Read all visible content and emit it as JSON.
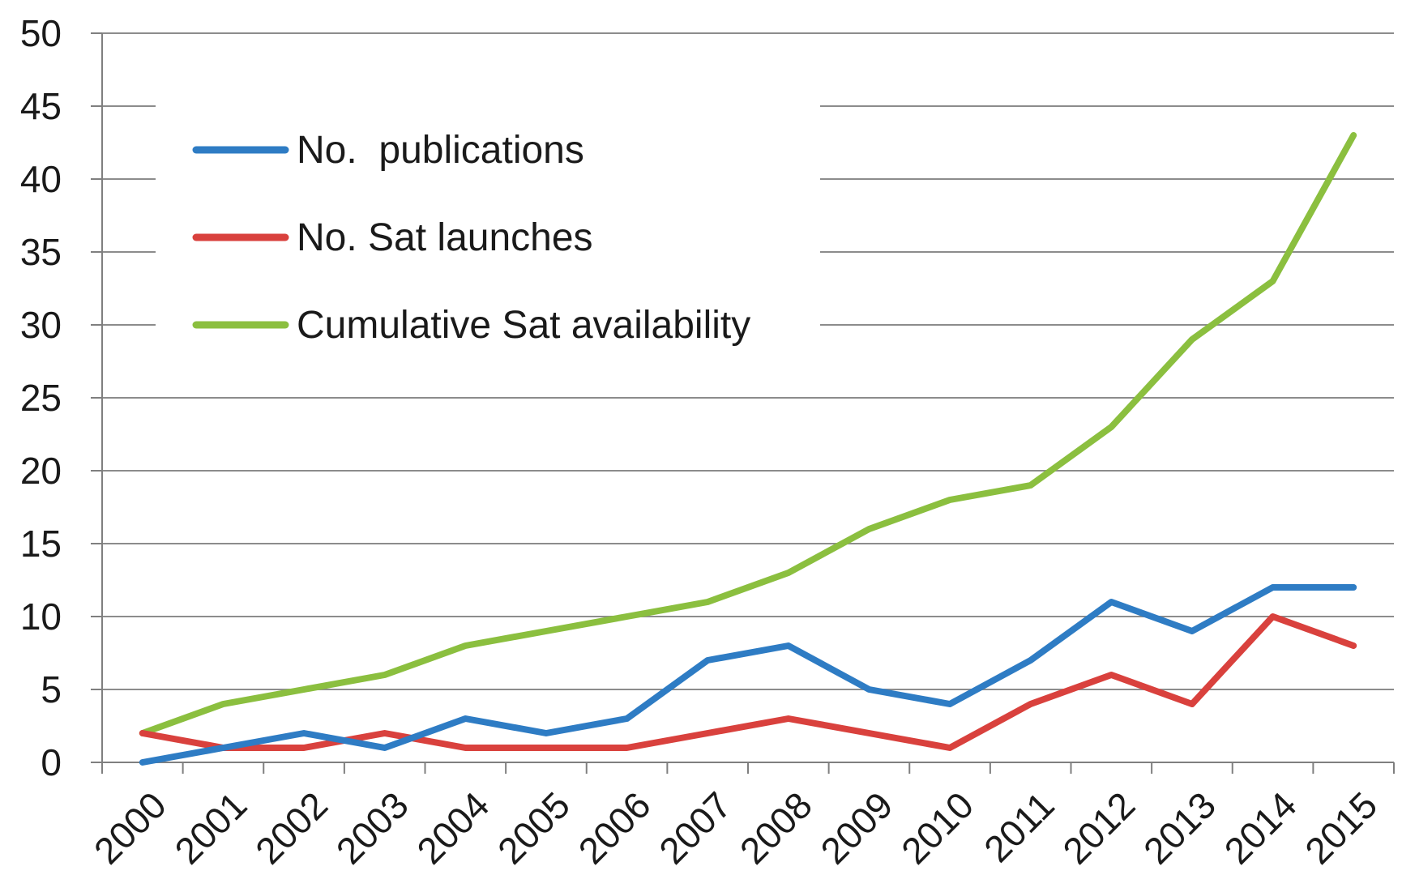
{
  "chart_data": {
    "type": "line",
    "title": "",
    "xlabel": "",
    "ylabel": "",
    "categories": [
      "2000",
      "2001",
      "2002",
      "2003",
      "2004",
      "2005",
      "2006",
      "2007",
      "2008",
      "2009",
      "2010",
      "2011",
      "2012",
      "2013",
      "2014",
      "2015"
    ],
    "ylim": [
      0,
      50
    ],
    "yticks": [
      0,
      5,
      10,
      15,
      20,
      25,
      30,
      35,
      40,
      45,
      50
    ],
    "ytick_labels": [
      "0",
      "5",
      "10",
      "15",
      "20",
      "25",
      "30",
      "35",
      "40",
      "45",
      "50"
    ],
    "grid": true,
    "legend_position": "top-left",
    "series": [
      {
        "name": "No.  publications",
        "color": "#2e7cc4",
        "values": [
          0,
          1,
          2,
          1,
          3,
          2,
          3,
          7,
          8,
          5,
          4,
          7,
          11,
          9,
          12,
          12
        ]
      },
      {
        "name": "No. Sat launches",
        "color": "#d9413d",
        "values": [
          2,
          1,
          1,
          2,
          1,
          1,
          1,
          2,
          3,
          2,
          1,
          4,
          6,
          4,
          10,
          8
        ]
      },
      {
        "name": "Cumulative Sat availability",
        "color": "#8bbf3f",
        "values": [
          2,
          4,
          5,
          6,
          8,
          9,
          10,
          11,
          13,
          16,
          18,
          19,
          23,
          29,
          33,
          43
        ]
      }
    ]
  }
}
